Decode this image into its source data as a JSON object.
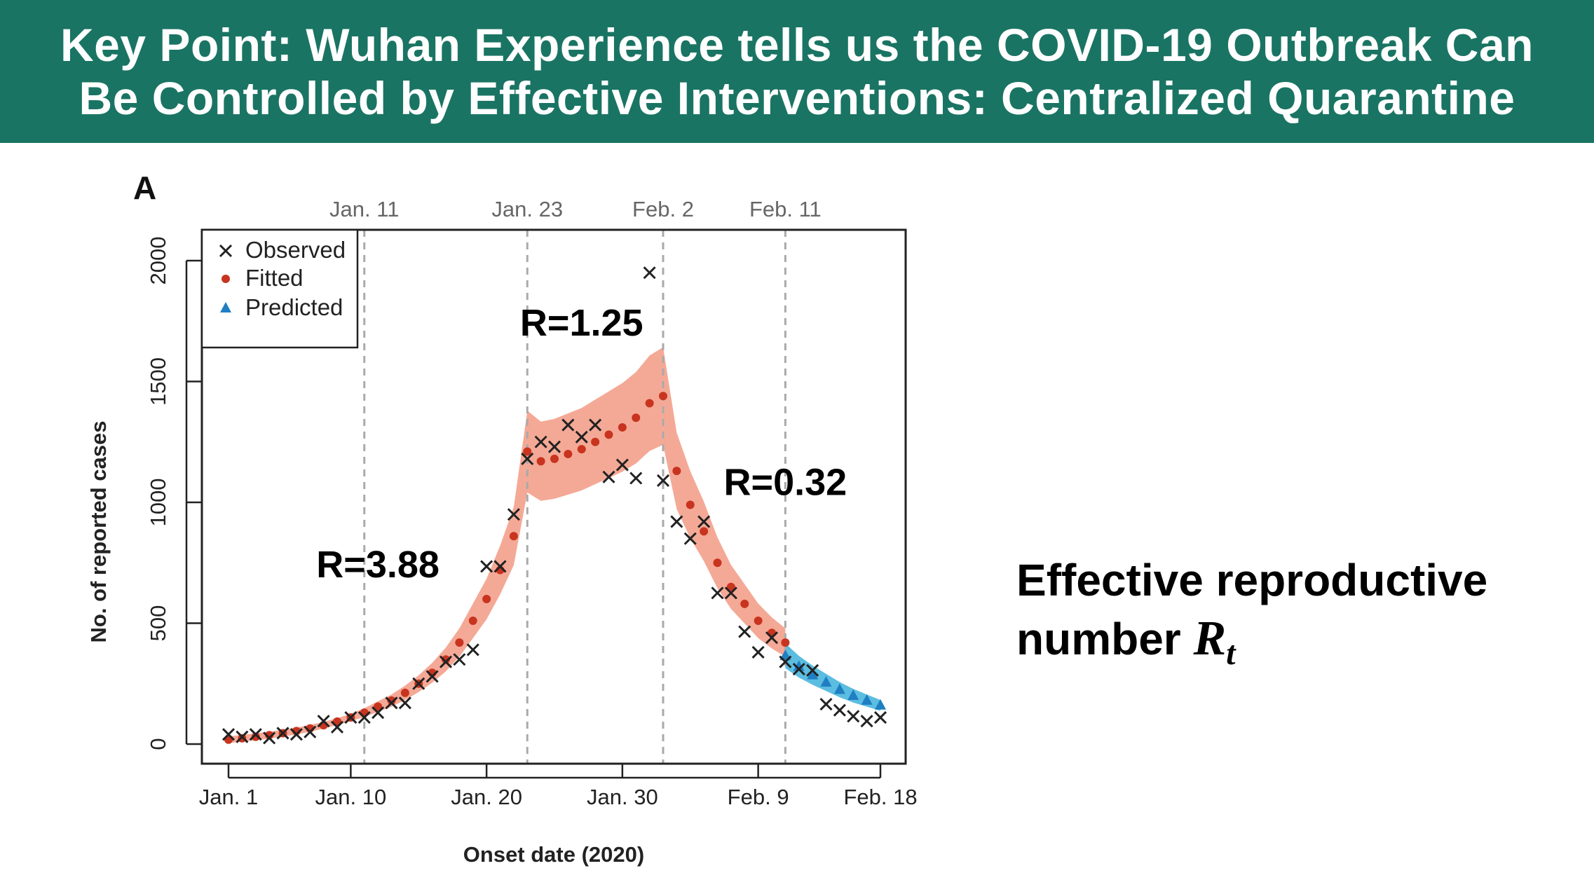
{
  "header": {
    "title_line1": "Key Point: Wuhan Experience tells us the COVID-19 Outbreak Can",
    "title_line2": "Be Controlled by Effective Interventions: Centralized Quarantine"
  },
  "side_label": {
    "text": "Effective reproductive",
    "text_line2": "number",
    "math_symbol": "R",
    "math_subscript": "t"
  },
  "chart_data": {
    "type": "scatter",
    "panel_label": "A",
    "xlabel": "Onset date (2020)",
    "ylabel": "No. of reported cases",
    "ylim": [
      0,
      2000
    ],
    "xlim_days": [
      1,
      49
    ],
    "y_ticks": [
      0,
      500,
      1000,
      1500,
      2000
    ],
    "x_ticks": [
      {
        "day": 1,
        "label": "Jan. 1"
      },
      {
        "day": 10,
        "label": "Jan. 10"
      },
      {
        "day": 20,
        "label": "Jan. 20"
      },
      {
        "day": 30,
        "label": "Jan. 30"
      },
      {
        "day": 40,
        "label": "Feb. 9"
      },
      {
        "day": 49,
        "label": "Feb. 18"
      }
    ],
    "vlines": [
      {
        "day": 11,
        "label": "Jan. 11"
      },
      {
        "day": 23,
        "label": "Jan. 23"
      },
      {
        "day": 33,
        "label": "Feb. 2"
      },
      {
        "day": 42,
        "label": "Feb. 11"
      }
    ],
    "r_annotations": [
      {
        "label": "R=3.88",
        "day": 12,
        "y": 690
      },
      {
        "label": "R=1.25",
        "day": 27,
        "y": 1690
      },
      {
        "label": "R=0.32",
        "day": 42,
        "y": 1030
      }
    ],
    "legend": {
      "position": "top-left",
      "entries": [
        "Observed",
        "Fitted",
        "Predicted"
      ]
    },
    "colors": {
      "observed": "#222222",
      "fitted": "#c8341f",
      "predicted": "#1f7fc2",
      "fitted_band": "#f4a996",
      "predicted_band": "#5bbde0",
      "vline": "#aaaaaa"
    },
    "series": [
      {
        "name": "Observed",
        "x": [
          1,
          2,
          3,
          4,
          5,
          6,
          7,
          8,
          9,
          10,
          11,
          12,
          13,
          14,
          15,
          16,
          17,
          18,
          19,
          20,
          21,
          22,
          23,
          24,
          25,
          26,
          27,
          28,
          29,
          30,
          31,
          32,
          33,
          34,
          35,
          36,
          37,
          38,
          39,
          40,
          41,
          42,
          43,
          44,
          45,
          46,
          47,
          48,
          49
        ],
        "values": [
          40,
          30,
          40,
          25,
          45,
          40,
          50,
          95,
          70,
          110,
          110,
          130,
          170,
          170,
          250,
          280,
          340,
          350,
          390,
          735,
          735,
          950,
          1180,
          1250,
          1230,
          1320,
          1270,
          1320,
          1105,
          1155,
          1100,
          1950,
          1090,
          920,
          850,
          920,
          625,
          625,
          465,
          380,
          440,
          340,
          310,
          305,
          165,
          140,
          115,
          95,
          110
        ]
      },
      {
        "name": "Fitted",
        "x": [
          1,
          2,
          3,
          4,
          5,
          6,
          7,
          8,
          9,
          10,
          11,
          12,
          13,
          14,
          15,
          16,
          17,
          18,
          19,
          20,
          21,
          22,
          23,
          24,
          25,
          26,
          27,
          28,
          29,
          30,
          31,
          32,
          33,
          34,
          35,
          36,
          37,
          38,
          39,
          40,
          41,
          42
        ],
        "values": [
          18,
          24,
          30,
          37,
          45,
          54,
          65,
          78,
          93,
          110,
          130,
          155,
          180,
          212,
          250,
          295,
          350,
          420,
          510,
          600,
          720,
          860,
          1210,
          1170,
          1180,
          1200,
          1220,
          1250,
          1280,
          1310,
          1350,
          1410,
          1440,
          1130,
          990,
          880,
          750,
          650,
          580,
          510,
          460,
          420
        ]
      },
      {
        "name": "Predicted",
        "x": [
          42,
          43,
          44,
          45,
          46,
          47,
          48,
          49
        ],
        "values": [
          365,
          320,
          285,
          255,
          225,
          200,
          180,
          160
        ]
      }
    ]
  }
}
